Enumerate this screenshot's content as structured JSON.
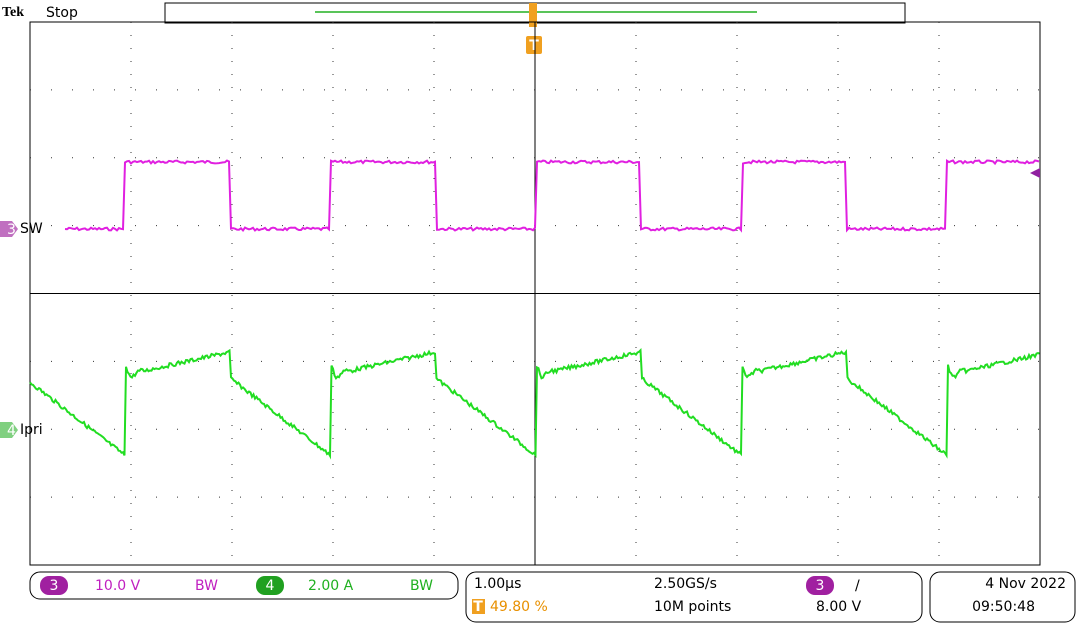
{
  "header": {
    "brand": "Tek",
    "status": "Stop",
    "trigger_marker": "T"
  },
  "channels": [
    {
      "number": "3",
      "label": "SW",
      "scale": "10.0 V",
      "bandwidth": "BW"
    },
    {
      "number": "4",
      "label": "Ipri",
      "scale": "2.00 A",
      "bandwidth": "BW"
    }
  ],
  "horizontal": {
    "scale": "1.00µs",
    "trigger_position": "49.80 %",
    "trigger_marker": "T",
    "sample_rate": "2.50GS/s",
    "record_length": "10M points"
  },
  "trigger": {
    "source": "3",
    "slope": "/",
    "level": "8.00 V"
  },
  "datetime": {
    "date": "4 Nov 2022",
    "time": "09:50:48"
  }
}
